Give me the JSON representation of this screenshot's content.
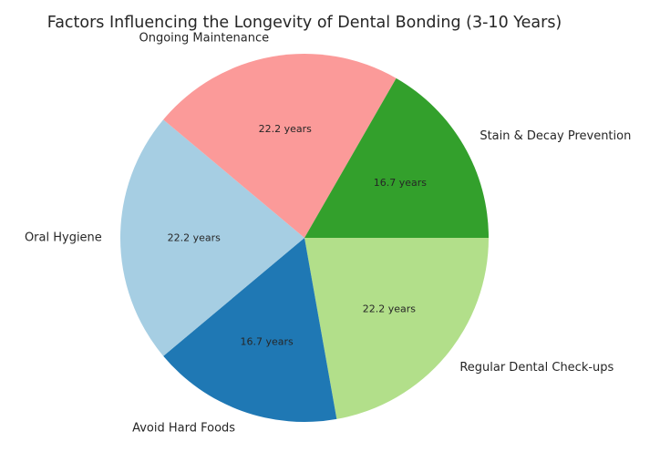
{
  "chart_data": {
    "type": "pie",
    "title": "Factors Influencing the Longevity of Dental Bonding (3-10 Years)",
    "slices": [
      {
        "label": "Regular Dental Check-ups",
        "value": 22.2,
        "display": "22.2 years",
        "color": "#b2df8a"
      },
      {
        "label": "Avoid Hard Foods",
        "value": 16.7,
        "display": "16.7 years",
        "color": "#1f78b4"
      },
      {
        "label": "Oral Hygiene",
        "value": 22.2,
        "display": "22.2 years",
        "color": "#a6cee3"
      },
      {
        "label": "Ongoing Maintenance",
        "value": 22.2,
        "display": "22.2 years",
        "color": "#fb9a99"
      },
      {
        "label": "Stain & Decay Prevention",
        "value": 16.7,
        "display": "16.7 years",
        "color": "#33a02c"
      }
    ],
    "start_angle_deg": 0,
    "direction": "clockwise-on-screen"
  }
}
